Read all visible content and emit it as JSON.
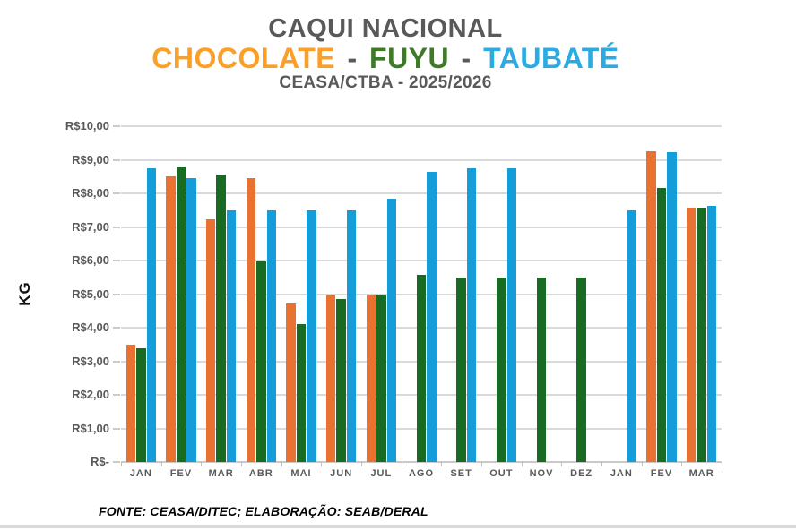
{
  "title": "CAQUI NACIONAL",
  "legend_line": {
    "chocolate_label": "CHOCOLATE",
    "separator1": " - ",
    "fuyu_label": "FUYU",
    "separator2": " - ",
    "taubate_label": "TAUBATÉ"
  },
  "subtitle": "CEASA/CTBA - 2025/2026",
  "y_axis_title": "KG",
  "footer": "FONTE: CEASA/DITEC; ELABORAÇÃO: SEAB/DERAL",
  "colors": {
    "title_gray": "#595959",
    "legend_chocolate": "#FAA028",
    "legend_fuyu": "#3E7A27",
    "legend_taubate": "#2CAAE2",
    "bar_chocolate": "#E97132",
    "bar_fuyu": "#196B24",
    "bar_taubate": "#149DD8",
    "gridline": "#D9D9D9"
  },
  "chart_data": {
    "type": "bar",
    "title": "CAQUI NACIONAL",
    "subtitle": "CEASA/CTBA - 2025/2026",
    "ylabel": "KG",
    "xlabel": "",
    "ylim": [
      0,
      10
    ],
    "grid": true,
    "legend_position": "title",
    "ytick_labels_top_to_bottom": [
      "R$10,00",
      "R$9,00",
      "R$8,00",
      "R$7,00",
      "R$6,00",
      "R$5,00",
      "R$4,00",
      "R$3,00",
      "R$2,00",
      "R$1,00",
      "R$-"
    ],
    "categories": [
      "JAN",
      "FEV",
      "MAR",
      "ABR",
      "MAI",
      "JUN",
      "JUL",
      "AGO",
      "SET",
      "OUT",
      "NOV",
      "DEZ",
      "JAN",
      "FEV",
      "MAR"
    ],
    "series": [
      {
        "name": "CHOCOLATE",
        "color": "#E97132",
        "values": [
          3.5,
          8.5,
          7.22,
          8.45,
          4.73,
          5.0,
          5.0,
          null,
          null,
          null,
          null,
          null,
          null,
          9.25,
          7.57
        ]
      },
      {
        "name": "FUYU",
        "color": "#196B24",
        "values": [
          3.4,
          8.8,
          8.57,
          5.97,
          4.1,
          4.85,
          5.0,
          5.58,
          5.5,
          5.5,
          5.5,
          5.5,
          null,
          8.17,
          7.57
        ]
      },
      {
        "name": "TAUBATÉ",
        "color": "#149DD8",
        "values": [
          8.75,
          8.45,
          7.5,
          7.5,
          7.5,
          7.5,
          7.85,
          8.63,
          8.75,
          8.75,
          null,
          null,
          7.5,
          9.22,
          7.62
        ]
      }
    ]
  }
}
